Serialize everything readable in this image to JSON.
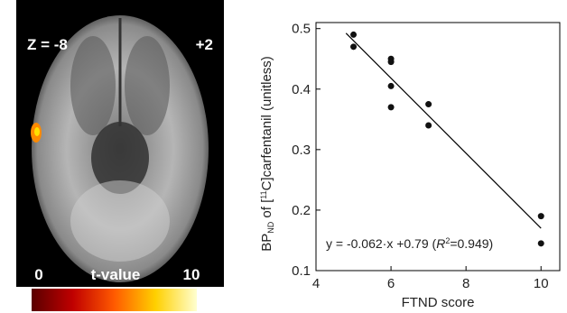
{
  "brain_panel": {
    "slice_label": "Z = -8",
    "corner_label": "+2",
    "colorbar_min": 0,
    "colorbar_label": "t-value",
    "colorbar_max": 10
  },
  "chart_data": {
    "type": "scatter",
    "x_label": "FTND score",
    "y_label_parts": [
      "BP",
      "ND",
      " of [",
      "11",
      "C]carfentanil (unitless)"
    ],
    "x": [
      5,
      5,
      6,
      6,
      6,
      6,
      7,
      7,
      10,
      10
    ],
    "values": [
      0.49,
      0.47,
      0.45,
      0.445,
      0.405,
      0.37,
      0.375,
      0.34,
      0.19,
      0.145
    ],
    "color": "#111111",
    "xlim": [
      4,
      10.5
    ],
    "ylim": [
      0.1,
      0.51
    ],
    "xticks": [
      4,
      6,
      8,
      10
    ],
    "yticks": [
      0.1,
      0.2,
      0.3,
      0.4,
      0.5
    ],
    "fit": {
      "slope": -0.062,
      "intercept": 0.79
    },
    "annotation_parts": [
      "y = -0.062·x +0.79 (",
      "R",
      "2",
      "=0.949)"
    ]
  }
}
